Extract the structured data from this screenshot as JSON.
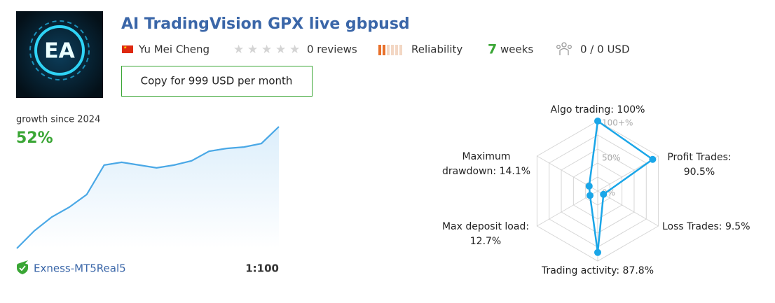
{
  "logo_text": "EA",
  "header": {
    "title": "AI TradingVision GPX live gbpusd",
    "author": "Yu Mei Cheng",
    "reviews": "0 reviews",
    "reliability": "Reliability",
    "weeks_number": "7",
    "weeks": "weeks",
    "subscribers": "0 / 0 USD",
    "button": "Copy for 999 USD per month"
  },
  "growth": {
    "caption": "growth since 2024",
    "value": "52%",
    "broker": "Exness-MT5Real5",
    "leverage": "1:100"
  },
  "chart_data": [
    {
      "type": "line",
      "color": "#4aa8e6",
      "ylim": [
        0,
        52
      ],
      "values": [
        0,
        7.5,
        13.4,
        17.6,
        23.0,
        35.6,
        36.8,
        35.6,
        34.4,
        35.6,
        37.4,
        41.5,
        42.7,
        43.3,
        44.8,
        52
      ]
    },
    {
      "type": "radar",
      "color": "#1aa6e8",
      "ylim": [
        0,
        100
      ],
      "yticks": [
        {
          "value": 100,
          "label": "100+%"
        },
        {
          "value": 50,
          "label": "50%"
        },
        {
          "value": 0,
          "label": "0%"
        }
      ],
      "values": [
        100,
        90.5,
        9.5,
        87.8,
        12.7,
        14.1
      ],
      "labels": [
        [
          "Algo trading: 100%"
        ],
        [
          "Profit Trades:",
          "90.5%"
        ],
        [
          "Loss Trades: 9.5%"
        ],
        [
          "Trading activity: 87.8%"
        ],
        [
          "Max deposit load:",
          "12.7%"
        ],
        [
          "Maximum",
          "drawdown: 14.1%"
        ]
      ]
    }
  ]
}
